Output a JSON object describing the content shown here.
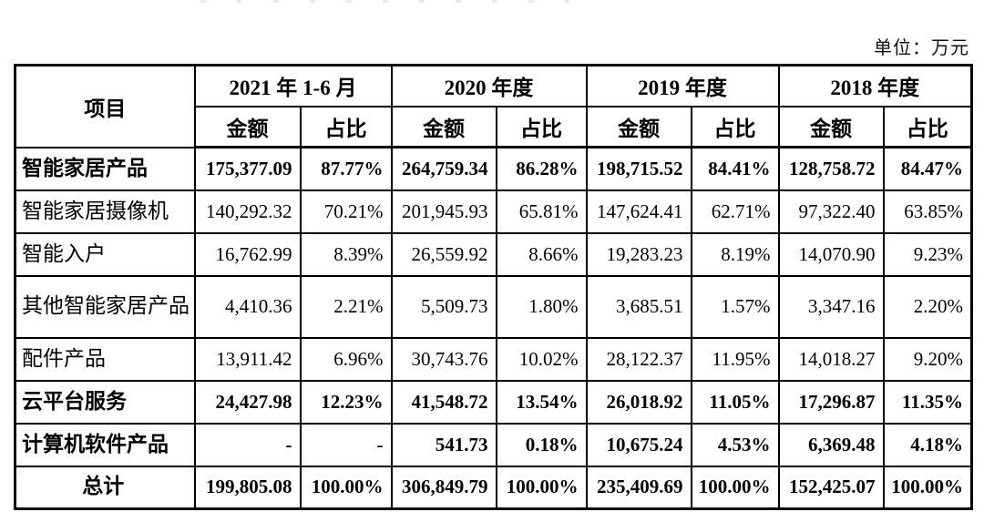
{
  "page": {
    "unit_label": "单位：万元"
  },
  "table": {
    "item_header": "项目",
    "period_headers": [
      "2021 年 1-6 月",
      "2020 年度",
      "2019 年度",
      "2018 年度"
    ],
    "sub_headers": {
      "amount": "金额",
      "ratio": "占比"
    },
    "rows": [
      {
        "label": "智能家居产品",
        "bold": true,
        "total": false,
        "values": [
          "175,377.09",
          "87.77%",
          "264,759.34",
          "86.28%",
          "198,715.52",
          "84.41%",
          "128,758.72",
          "84.47%"
        ]
      },
      {
        "label": "智能家居摄像机",
        "bold": false,
        "total": false,
        "values": [
          "140,292.32",
          "70.21%",
          "201,945.93",
          "65.81%",
          "147,624.41",
          "62.71%",
          "97,322.40",
          "63.85%"
        ]
      },
      {
        "label": "智能入户",
        "bold": false,
        "total": false,
        "values": [
          "16,762.99",
          "8.39%",
          "26,559.92",
          "8.66%",
          "19,283.23",
          "8.19%",
          "14,070.90",
          "9.23%"
        ]
      },
      {
        "label": "其他智能家居产品",
        "bold": false,
        "total": false,
        "values": [
          "4,410.36",
          "2.21%",
          "5,509.73",
          "1.80%",
          "3,685.51",
          "1.57%",
          "3,347.16",
          "2.20%"
        ]
      },
      {
        "label": "配件产品",
        "bold": false,
        "total": false,
        "values": [
          "13,911.42",
          "6.96%",
          "30,743.76",
          "10.02%",
          "28,122.37",
          "11.95%",
          "14,018.27",
          "9.20%"
        ]
      },
      {
        "label": "云平台服务",
        "bold": true,
        "total": false,
        "values": [
          "24,427.98",
          "12.23%",
          "41,548.72",
          "13.54%",
          "26,018.92",
          "11.05%",
          "17,296.87",
          "11.35%"
        ]
      },
      {
        "label": "计算机软件产品",
        "bold": true,
        "total": false,
        "values": [
          "-",
          "-",
          "541.73",
          "0.18%",
          "10,675.24",
          "4.53%",
          "6,369.48",
          "4.18%"
        ]
      },
      {
        "label": "总计",
        "bold": true,
        "total": true,
        "values": [
          "199,805.08",
          "100.00%",
          "306,849.79",
          "100.00%",
          "235,409.69",
          "100.00%",
          "152,425.07",
          "100.00%"
        ]
      }
    ]
  }
}
